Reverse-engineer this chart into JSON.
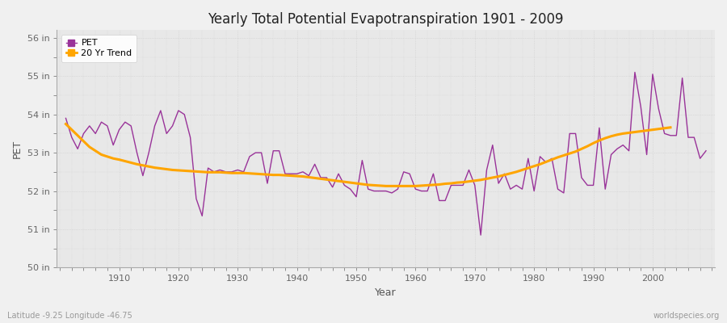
{
  "title": "Yearly Total Potential Evapotranspiration 1901 - 2009",
  "xlabel": "Year",
  "ylabel": "PET",
  "footnote_left": "Latitude -9.25 Longitude -46.75",
  "footnote_right": "worldspecies.org",
  "bg_color": "#f0f0f0",
  "plot_bg_color": "#e8e8e8",
  "pet_color": "#993399",
  "trend_color": "#FFA500",
  "ylim": [
    50,
    56.2
  ],
  "ytick_labels": [
    "50 in",
    "51 in",
    "52 in",
    "53 in",
    "54 in",
    "55 in",
    "56 in"
  ],
  "ytick_values": [
    50,
    51,
    52,
    53,
    54,
    55,
    56
  ],
  "years": [
    1901,
    1902,
    1903,
    1904,
    1905,
    1906,
    1907,
    1908,
    1909,
    1910,
    1911,
    1912,
    1913,
    1914,
    1915,
    1916,
    1917,
    1918,
    1919,
    1920,
    1921,
    1922,
    1923,
    1924,
    1925,
    1926,
    1927,
    1928,
    1929,
    1930,
    1931,
    1932,
    1933,
    1934,
    1935,
    1936,
    1937,
    1938,
    1939,
    1940,
    1941,
    1942,
    1943,
    1944,
    1945,
    1946,
    1947,
    1948,
    1949,
    1950,
    1951,
    1952,
    1953,
    1954,
    1955,
    1956,
    1957,
    1958,
    1959,
    1960,
    1961,
    1962,
    1963,
    1964,
    1965,
    1966,
    1967,
    1968,
    1969,
    1970,
    1971,
    1972,
    1973,
    1974,
    1975,
    1976,
    1977,
    1978,
    1979,
    1980,
    1981,
    1982,
    1983,
    1984,
    1985,
    1986,
    1987,
    1988,
    1989,
    1990,
    1991,
    1992,
    1993,
    1994,
    1995,
    1996,
    1997,
    1998,
    1999,
    2000,
    2001,
    2002,
    2003,
    2004,
    2005,
    2006,
    2007,
    2008,
    2009
  ],
  "pet_values": [
    53.9,
    53.4,
    53.1,
    53.5,
    53.7,
    53.5,
    53.8,
    53.7,
    53.2,
    53.6,
    53.8,
    53.7,
    53.0,
    52.4,
    53.0,
    53.7,
    54.1,
    53.5,
    53.7,
    54.1,
    54.0,
    53.4,
    51.8,
    51.35,
    52.6,
    52.5,
    52.55,
    52.5,
    52.5,
    52.55,
    52.5,
    52.9,
    53.0,
    53.0,
    52.2,
    53.05,
    53.05,
    52.45,
    52.45,
    52.45,
    52.5,
    52.4,
    52.7,
    52.35,
    52.35,
    52.1,
    52.45,
    52.15,
    52.05,
    51.85,
    52.8,
    52.05,
    52.0,
    52.0,
    52.0,
    51.95,
    52.05,
    52.5,
    52.45,
    52.05,
    52.0,
    52.0,
    52.45,
    51.75,
    51.75,
    52.15,
    52.15,
    52.15,
    52.55,
    52.15,
    50.85,
    52.55,
    53.2,
    52.2,
    52.45,
    52.05,
    52.15,
    52.05,
    52.85,
    52.0,
    52.9,
    52.75,
    52.85,
    52.05,
    51.95,
    53.5,
    53.5,
    52.35,
    52.15,
    52.15,
    53.65,
    52.05,
    52.95,
    53.1,
    53.2,
    53.05,
    55.1,
    54.2,
    52.95,
    55.05,
    54.15,
    53.5,
    53.45,
    53.45,
    54.95,
    53.4,
    53.4,
    52.85,
    53.05
  ],
  "trend_values": [
    53.75,
    53.6,
    53.45,
    53.3,
    53.15,
    53.05,
    52.95,
    52.9,
    52.85,
    52.82,
    52.78,
    52.74,
    52.7,
    52.67,
    52.64,
    52.61,
    52.59,
    52.57,
    52.55,
    52.54,
    52.53,
    52.52,
    52.51,
    52.5,
    52.49,
    52.49,
    52.49,
    52.48,
    52.47,
    52.47,
    52.47,
    52.46,
    52.45,
    52.44,
    52.43,
    52.42,
    52.42,
    52.41,
    52.4,
    52.39,
    52.38,
    52.36,
    52.34,
    52.32,
    52.3,
    52.28,
    52.26,
    52.24,
    52.22,
    52.2,
    52.18,
    52.16,
    52.15,
    52.14,
    52.13,
    52.13,
    52.13,
    52.13,
    52.13,
    52.13,
    52.14,
    52.15,
    52.16,
    52.17,
    52.19,
    52.2,
    52.22,
    52.23,
    52.25,
    52.27,
    52.29,
    52.32,
    52.35,
    52.38,
    52.42,
    52.46,
    52.5,
    52.55,
    52.6,
    52.65,
    52.7,
    52.76,
    52.82,
    52.88,
    52.93,
    52.98,
    53.03,
    53.1,
    53.17,
    53.25,
    53.32,
    53.38,
    53.43,
    53.47,
    53.5,
    53.52,
    53.54,
    53.56,
    53.58,
    53.6,
    53.62,
    53.64,
    53.66,
    null,
    null,
    null,
    null,
    null,
    null
  ],
  "legend_pet_label": "PET",
  "legend_trend_label": "20 Yr Trend"
}
